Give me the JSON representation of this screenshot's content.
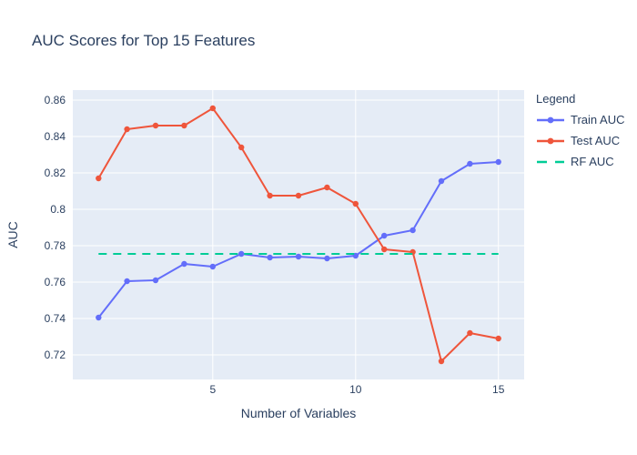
{
  "figure": {
    "title": "AUC Scores for Top 15 Features"
  },
  "axes": {
    "x_label": "Number of Variables",
    "y_label": "AUC"
  },
  "legend": {
    "title": "Legend",
    "items": [
      {
        "label": "Train AUC",
        "color": "#636efa",
        "style": "solid-marker"
      },
      {
        "label": "Test AUC",
        "color": "#ef553b",
        "style": "solid-marker"
      },
      {
        "label": "RF AUC",
        "color": "#00cc96",
        "style": "dashed"
      }
    ]
  },
  "colors": {
    "plot_background": "#e5ecf6",
    "grid": "#ffffff",
    "text": "#2a3f5f",
    "train": "#636efa",
    "test": "#ef553b",
    "rf": "#00cc96"
  },
  "chart_data": {
    "type": "line",
    "title": "AUC Scores for Top 15 Features",
    "xlabel": "Number of Variables",
    "ylabel": "AUC",
    "x": [
      1,
      2,
      3,
      4,
      5,
      6,
      7,
      8,
      9,
      10,
      11,
      12,
      13,
      14,
      15
    ],
    "series": [
      {
        "name": "Train AUC",
        "color": "#636efa",
        "dash": "solid",
        "markers": true,
        "values": [
          0.7405,
          0.7605,
          0.761,
          0.77,
          0.7685,
          0.7755,
          0.7735,
          0.774,
          0.773,
          0.7745,
          0.7855,
          0.7885,
          0.8155,
          0.825,
          0.826
        ]
      },
      {
        "name": "Test AUC",
        "color": "#ef553b",
        "dash": "solid",
        "markers": true,
        "values": [
          0.817,
          0.844,
          0.846,
          0.846,
          0.8555,
          0.834,
          0.8075,
          0.8075,
          0.812,
          0.803,
          0.778,
          0.7765,
          0.7165,
          0.732,
          0.729
        ]
      },
      {
        "name": "RF AUC",
        "color": "#00cc96",
        "dash": "dash",
        "markers": false,
        "values": [
          0.7755,
          0.7755,
          0.7755,
          0.7755,
          0.7755,
          0.7755,
          0.7755,
          0.7755,
          0.7755,
          0.7755,
          0.7755,
          0.7755,
          0.7755,
          0.7755,
          0.7755
        ]
      }
    ],
    "xticks": [
      5,
      10,
      15
    ],
    "yticks": [
      0.72,
      0.74,
      0.76,
      0.78,
      0.8,
      0.82,
      0.84,
      0.86
    ],
    "xlim": [
      0.1,
      15.9
    ],
    "ylim": [
      0.7065,
      0.8655
    ],
    "grid": true,
    "legend_position": "right"
  }
}
